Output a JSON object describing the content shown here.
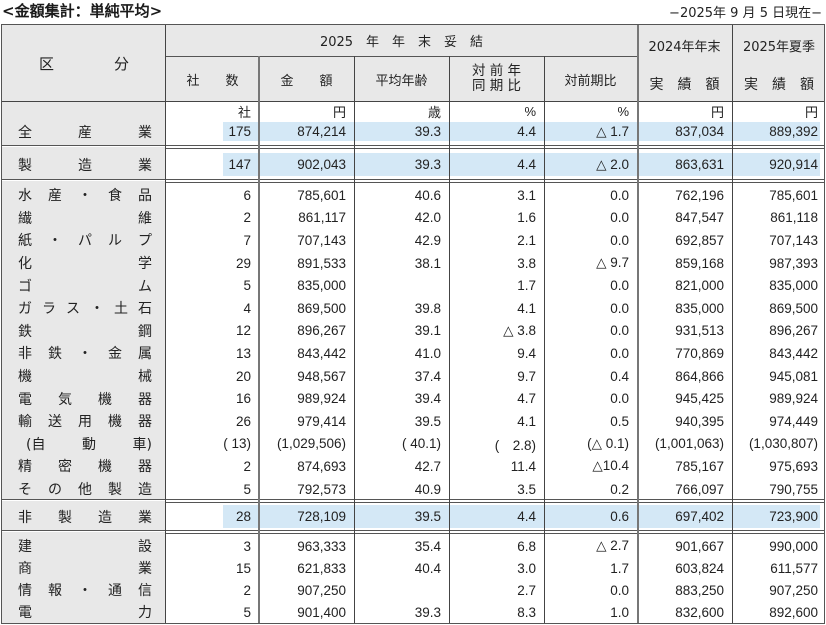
{
  "title": "<金額集計：単純平均>",
  "as_of": "−2025年 9 月 5 日現在−",
  "header": {
    "category": [
      "区",
      "分"
    ],
    "group_title": "2025　年　年　末　妥　結",
    "columns": [
      {
        "key": "companies",
        "label": "社　　数"
      },
      {
        "key": "amount",
        "label": "金　　額"
      },
      {
        "key": "avg_age",
        "label": "平均年齢"
      },
      {
        "key": "yoy",
        "label_line1": "対 前 年",
        "label_line2": "同 期 比"
      },
      {
        "key": "vs_prev",
        "label": "対前期比"
      },
      {
        "key": "prev_year_end",
        "label_top": "2024年年末",
        "label_bottom": "実　績　額"
      },
      {
        "key": "summer_2025",
        "label_top": "2025年夏季",
        "label_bottom": "実　績　額"
      }
    ],
    "units": [
      "社",
      "円",
      "歳",
      "%",
      "%",
      "円",
      "円"
    ]
  },
  "rows": {
    "all_industries": {
      "label": [
        "全",
        "産",
        "業"
      ],
      "values": [
        "175",
        "874,214",
        "39.3",
        "4.4",
        "△ 1.7",
        "837,034",
        "889,392"
      ]
    },
    "manufacturing": {
      "label": [
        "製",
        "造",
        "業"
      ],
      "values": [
        "147",
        "902,043",
        "39.3",
        "4.4",
        "△ 2.0",
        "863,631",
        "920,914"
      ]
    },
    "manufacturing_detail": [
      {
        "label": [
          "水",
          "産",
          "・",
          "食",
          "品"
        ],
        "values": [
          "6",
          "785,601",
          "40.6",
          "3.1",
          "0.0",
          "762,196",
          "785,601"
        ]
      },
      {
        "label": [
          "繊",
          "維"
        ],
        "values": [
          "2",
          "861,117",
          "42.0",
          "1.6",
          "0.0",
          "847,547",
          "861,118"
        ]
      },
      {
        "label": [
          "紙",
          "・",
          "パ",
          "ル",
          "プ"
        ],
        "values": [
          "7",
          "707,143",
          "42.9",
          "2.1",
          "0.0",
          "692,857",
          "707,143"
        ]
      },
      {
        "label": [
          "化",
          "学"
        ],
        "values": [
          "29",
          "891,533",
          "38.1",
          "3.8",
          "△ 9.7",
          "859,168",
          "987,393"
        ]
      },
      {
        "label": [
          "ゴ",
          "ム"
        ],
        "values": [
          "5",
          "835,000",
          "",
          "1.7",
          "0.0",
          "821,000",
          "835,000"
        ]
      },
      {
        "label": [
          "ガ",
          "ラ",
          "ス",
          "・",
          "土",
          "石"
        ],
        "values": [
          "4",
          "869,500",
          "39.8",
          "4.1",
          "0.0",
          "835,000",
          "869,500"
        ]
      },
      {
        "label": [
          "鉄",
          "鋼"
        ],
        "values": [
          "12",
          "896,267",
          "39.1",
          "△ 3.8",
          "0.0",
          "931,513",
          "896,267"
        ]
      },
      {
        "label": [
          "非",
          "鉄",
          "・",
          "金",
          "属"
        ],
        "values": [
          "13",
          "843,442",
          "41.0",
          "9.4",
          "0.0",
          "770,869",
          "843,442"
        ]
      },
      {
        "label": [
          "機",
          "械"
        ],
        "values": [
          "20",
          "948,567",
          "37.4",
          "9.7",
          "0.4",
          "864,866",
          "945,081"
        ]
      },
      {
        "label": [
          "電",
          "気",
          "機",
          "器"
        ],
        "values": [
          "16",
          "989,924",
          "39.4",
          "4.7",
          "0.0",
          "945,425",
          "989,924"
        ]
      },
      {
        "label": [
          "輸",
          "送",
          "用",
          "機",
          "器"
        ],
        "values": [
          "26",
          "979,414",
          "39.5",
          "4.1",
          "0.5",
          "940,395",
          "974,449"
        ]
      },
      {
        "label": [
          "(自",
          "動",
          "車)"
        ],
        "indent": true,
        "values": [
          "( 13)",
          "(1,029,506)",
          "( 40.1)",
          "(　2.8)",
          "(△ 0.1)",
          "(1,001,063)",
          "(1,030,807)"
        ]
      },
      {
        "label": [
          "精",
          "密",
          "機",
          "器"
        ],
        "values": [
          "2",
          "874,693",
          "42.7",
          "11.4",
          "△10.4",
          "785,167",
          "975,693"
        ]
      },
      {
        "label": [
          "そ",
          "の",
          "他",
          "製",
          "造"
        ],
        "values": [
          "5",
          "792,573",
          "40.9",
          "3.5",
          "0.2",
          "766,097",
          "790,755"
        ]
      }
    ],
    "non_manufacturing": {
      "label": [
        "非",
        "製",
        "造",
        "業"
      ],
      "values": [
        "28",
        "728,109",
        "39.5",
        "4.4",
        "0.6",
        "697,402",
        "723,900"
      ]
    },
    "non_manufacturing_detail": [
      {
        "label": [
          "建",
          "設"
        ],
        "values": [
          "3",
          "963,333",
          "35.4",
          "6.8",
          "△ 2.7",
          "901,667",
          "990,000"
        ]
      },
      {
        "label": [
          "商",
          "業"
        ],
        "values": [
          "15",
          "621,833",
          "40.4",
          "3.0",
          "1.7",
          "603,824",
          "611,577"
        ]
      },
      {
        "label": [
          "情",
          "報",
          "・",
          "通",
          "信"
        ],
        "values": [
          "2",
          "907,250",
          "",
          "2.7",
          "0.0",
          "883,250",
          "907,250"
        ]
      },
      {
        "label": [
          "電",
          "力"
        ],
        "values": [
          "5",
          "901,400",
          "39.3",
          "8.3",
          "1.0",
          "832,600",
          "892,600"
        ]
      }
    ]
  },
  "colors": {
    "header_bg": "#e8e8e8",
    "highlight_bg": "#d4e8f6",
    "border": "#555555"
  }
}
